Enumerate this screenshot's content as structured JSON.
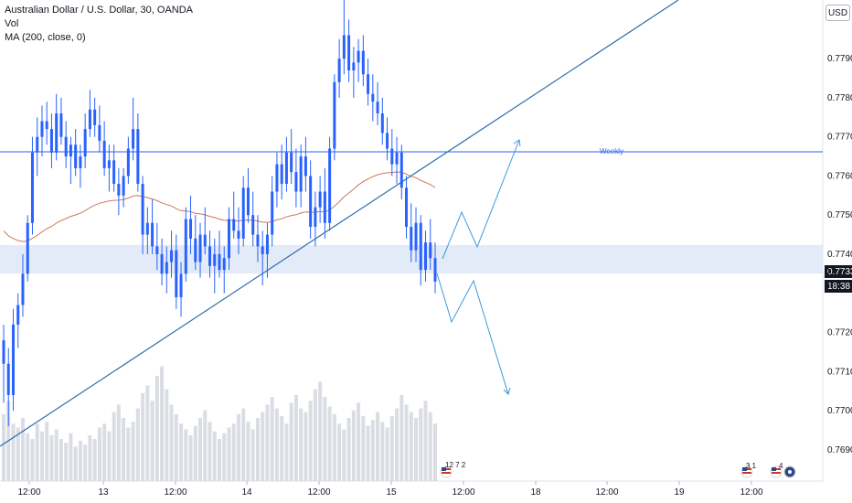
{
  "legend": {
    "symbol_line": "Australian Dollar / U.S. Dollar, 30, OANDA",
    "vol_line": "Vol",
    "ma_line": "MA (200, close, 0)"
  },
  "price_axis": {
    "currency": "USD",
    "labels": [
      "0.77900",
      "0.77800",
      "0.77700",
      "0.77600",
      "0.77500",
      "0.77400",
      "0.77200",
      "0.77100",
      "0.77000",
      "0.76900"
    ],
    "current_price": "0.77334",
    "countdown": "18:38",
    "partial_labels": [
      "0",
      "0"
    ]
  },
  "time_axis": {
    "labels": [
      "12:00",
      "13",
      "12:00",
      "14",
      "12:00",
      "15",
      "12:00",
      "18",
      "12:00",
      "19",
      "12:00"
    ]
  },
  "weekly_level": {
    "label": "Weekly",
    "color": "#2962ff"
  },
  "events": [
    {
      "label": "12 7 2",
      "icon": "flag-us-icon"
    },
    {
      "label": "3 1",
      "icon": "flag-us-icon"
    },
    {
      "label": "4",
      "icon": "flag-us-icon"
    }
  ],
  "colors": {
    "candle": "#2962ff",
    "ma": "#c87a5a",
    "volume": "#d1d4dc",
    "zone": "#dbe6f5",
    "trendline": "#2b6cb0",
    "projection": "#3a9ad9"
  },
  "chart_data": {
    "type": "candlestick",
    "title": "Australian Dollar / U.S. Dollar, 30, OANDA",
    "y_range": [
      0.7682,
      0.7805
    ],
    "horizontal_level": 0.7764,
    "demand_zone": [
      0.7732,
      0.774
    ],
    "trendline": {
      "from": [
        "13 00:00",
        0.7688
      ],
      "to": [
        "16 10:00",
        0.7805
      ]
    },
    "ma_period": 200,
    "candles": [
      [
        0.7718,
        0.7722,
        0.7702,
        0.7712
      ],
      [
        0.7712,
        0.7716,
        0.7696,
        0.7704
      ],
      [
        0.7704,
        0.7726,
        0.77,
        0.7722
      ],
      [
        0.7722,
        0.773,
        0.7716,
        0.7727
      ],
      [
        0.7727,
        0.774,
        0.7724,
        0.7735
      ],
      [
        0.7735,
        0.775,
        0.7733,
        0.7748
      ],
      [
        0.7748,
        0.777,
        0.7745,
        0.7766
      ],
      [
        0.7766,
        0.7775,
        0.776,
        0.777
      ],
      [
        0.777,
        0.7778,
        0.7765,
        0.7774
      ],
      [
        0.7774,
        0.7779,
        0.7768,
        0.7772
      ],
      [
        0.7772,
        0.7776,
        0.7762,
        0.7766
      ],
      [
        0.7766,
        0.7781,
        0.7764,
        0.7776
      ],
      [
        0.7776,
        0.778,
        0.7768,
        0.777
      ],
      [
        0.777,
        0.7774,
        0.7762,
        0.7765
      ],
      [
        0.7765,
        0.777,
        0.7758,
        0.7768
      ],
      [
        0.7768,
        0.7772,
        0.776,
        0.7762
      ],
      [
        0.7762,
        0.7768,
        0.7757,
        0.7765
      ],
      [
        0.7765,
        0.7776,
        0.7762,
        0.7772
      ],
      [
        0.7772,
        0.7782,
        0.777,
        0.7777
      ],
      [
        0.7777,
        0.778,
        0.777,
        0.7773
      ],
      [
        0.7773,
        0.7778,
        0.7766,
        0.7769
      ],
      [
        0.7769,
        0.7774,
        0.776,
        0.7762
      ],
      [
        0.7762,
        0.7768,
        0.7756,
        0.7764
      ],
      [
        0.7764,
        0.7768,
        0.7756,
        0.7758
      ],
      [
        0.7758,
        0.7762,
        0.775,
        0.7755
      ],
      [
        0.7755,
        0.7762,
        0.7752,
        0.776
      ],
      [
        0.776,
        0.777,
        0.7758,
        0.7767
      ],
      [
        0.7767,
        0.778,
        0.7764,
        0.7772
      ],
      [
        0.7772,
        0.7776,
        0.7756,
        0.7758
      ],
      [
        0.7758,
        0.776,
        0.774,
        0.7745
      ],
      [
        0.7745,
        0.7752,
        0.774,
        0.7748
      ],
      [
        0.7748,
        0.7754,
        0.774,
        0.7742
      ],
      [
        0.7742,
        0.7748,
        0.7736,
        0.774
      ],
      [
        0.774,
        0.7744,
        0.7732,
        0.7735
      ],
      [
        0.7735,
        0.7742,
        0.773,
        0.7738
      ],
      [
        0.7738,
        0.7746,
        0.7734,
        0.7741
      ],
      [
        0.7741,
        0.7745,
        0.7726,
        0.7729
      ],
      [
        0.7729,
        0.7738,
        0.7724,
        0.7735
      ],
      [
        0.7735,
        0.7752,
        0.7733,
        0.7749
      ],
      [
        0.7749,
        0.7755,
        0.774,
        0.7744
      ],
      [
        0.7744,
        0.775,
        0.7736,
        0.7738
      ],
      [
        0.7738,
        0.7748,
        0.7734,
        0.7745
      ],
      [
        0.7745,
        0.7752,
        0.774,
        0.7742
      ],
      [
        0.7742,
        0.7746,
        0.7734,
        0.7737
      ],
      [
        0.7737,
        0.7744,
        0.773,
        0.774
      ],
      [
        0.774,
        0.7746,
        0.7734,
        0.7736
      ],
      [
        0.7736,
        0.7742,
        0.773,
        0.7739
      ],
      [
        0.7739,
        0.7752,
        0.7736,
        0.7749
      ],
      [
        0.7749,
        0.7756,
        0.7744,
        0.7746
      ],
      [
        0.7746,
        0.7752,
        0.774,
        0.7744
      ],
      [
        0.7744,
        0.776,
        0.7742,
        0.7757
      ],
      [
        0.7757,
        0.7762,
        0.7748,
        0.775
      ],
      [
        0.775,
        0.7756,
        0.7742,
        0.7745
      ],
      [
        0.7745,
        0.775,
        0.7738,
        0.7742
      ],
      [
        0.7742,
        0.7746,
        0.7732,
        0.774
      ],
      [
        0.774,
        0.7748,
        0.7734,
        0.7745
      ],
      [
        0.7745,
        0.776,
        0.7742,
        0.7756
      ],
      [
        0.7756,
        0.7766,
        0.7752,
        0.7763
      ],
      [
        0.7763,
        0.7768,
        0.7754,
        0.7758
      ],
      [
        0.7758,
        0.777,
        0.7756,
        0.7766
      ],
      [
        0.7766,
        0.7772,
        0.7758,
        0.7761
      ],
      [
        0.7761,
        0.7767,
        0.7752,
        0.7756
      ],
      [
        0.7756,
        0.7768,
        0.7752,
        0.7765
      ],
      [
        0.7765,
        0.777,
        0.7756,
        0.776
      ],
      [
        0.776,
        0.7764,
        0.7744,
        0.7747
      ],
      [
        0.7747,
        0.7756,
        0.7742,
        0.7752
      ],
      [
        0.7752,
        0.776,
        0.7748,
        0.7756
      ],
      [
        0.7756,
        0.7762,
        0.7744,
        0.7748
      ],
      [
        0.7748,
        0.777,
        0.7746,
        0.7767
      ],
      [
        0.7767,
        0.7786,
        0.7764,
        0.7784
      ],
      [
        0.7784,
        0.7795,
        0.778,
        0.779
      ],
      [
        0.779,
        0.7805,
        0.7786,
        0.7796
      ],
      [
        0.7796,
        0.78,
        0.7784,
        0.7787
      ],
      [
        0.7787,
        0.7793,
        0.778,
        0.7789
      ],
      [
        0.7789,
        0.7795,
        0.7784,
        0.7792
      ],
      [
        0.7792,
        0.7796,
        0.7783,
        0.7786
      ],
      [
        0.7786,
        0.779,
        0.7778,
        0.7781
      ],
      [
        0.7781,
        0.7786,
        0.7774,
        0.7779
      ],
      [
        0.7779,
        0.7784,
        0.7773,
        0.7776
      ],
      [
        0.7776,
        0.778,
        0.7768,
        0.7771
      ],
      [
        0.7771,
        0.7775,
        0.7764,
        0.7767
      ],
      [
        0.7767,
        0.7772,
        0.776,
        0.7763
      ],
      [
        0.7763,
        0.777,
        0.7758,
        0.7766
      ],
      [
        0.7766,
        0.7768,
        0.7754,
        0.7757
      ],
      [
        0.7757,
        0.776,
        0.7744,
        0.7747
      ],
      [
        0.7747,
        0.7753,
        0.7738,
        0.7741
      ],
      [
        0.7741,
        0.7752,
        0.7738,
        0.7748
      ],
      [
        0.7748,
        0.775,
        0.7732,
        0.7736
      ],
      [
        0.7736,
        0.7746,
        0.7733,
        0.7743
      ],
      [
        0.7743,
        0.7749,
        0.7736,
        0.7739
      ],
      [
        0.7739,
        0.7743,
        0.773,
        0.7733
      ]
    ],
    "volumes": [
      0.35,
      0.42,
      0.3,
      0.28,
      0.33,
      0.25,
      0.22,
      0.3,
      0.26,
      0.31,
      0.24,
      0.27,
      0.22,
      0.2,
      0.25,
      0.18,
      0.21,
      0.19,
      0.24,
      0.22,
      0.28,
      0.3,
      0.26,
      0.36,
      0.4,
      0.33,
      0.28,
      0.31,
      0.38,
      0.46,
      0.5,
      0.42,
      0.55,
      0.6,
      0.48,
      0.4,
      0.35,
      0.3,
      0.27,
      0.24,
      0.29,
      0.33,
      0.37,
      0.31,
      0.26,
      0.22,
      0.25,
      0.28,
      0.3,
      0.35,
      0.38,
      0.31,
      0.27,
      0.33,
      0.36,
      0.4,
      0.44,
      0.38,
      0.34,
      0.3,
      0.41,
      0.45,
      0.38,
      0.36,
      0.42,
      0.48,
      0.52,
      0.44,
      0.39,
      0.35,
      0.3,
      0.27,
      0.33,
      0.37,
      0.41,
      0.34,
      0.29,
      0.32,
      0.36,
      0.31,
      0.28,
      0.34,
      0.38,
      0.45,
      0.4,
      0.36,
      0.33,
      0.38,
      0.42,
      0.36,
      0.3
    ]
  }
}
